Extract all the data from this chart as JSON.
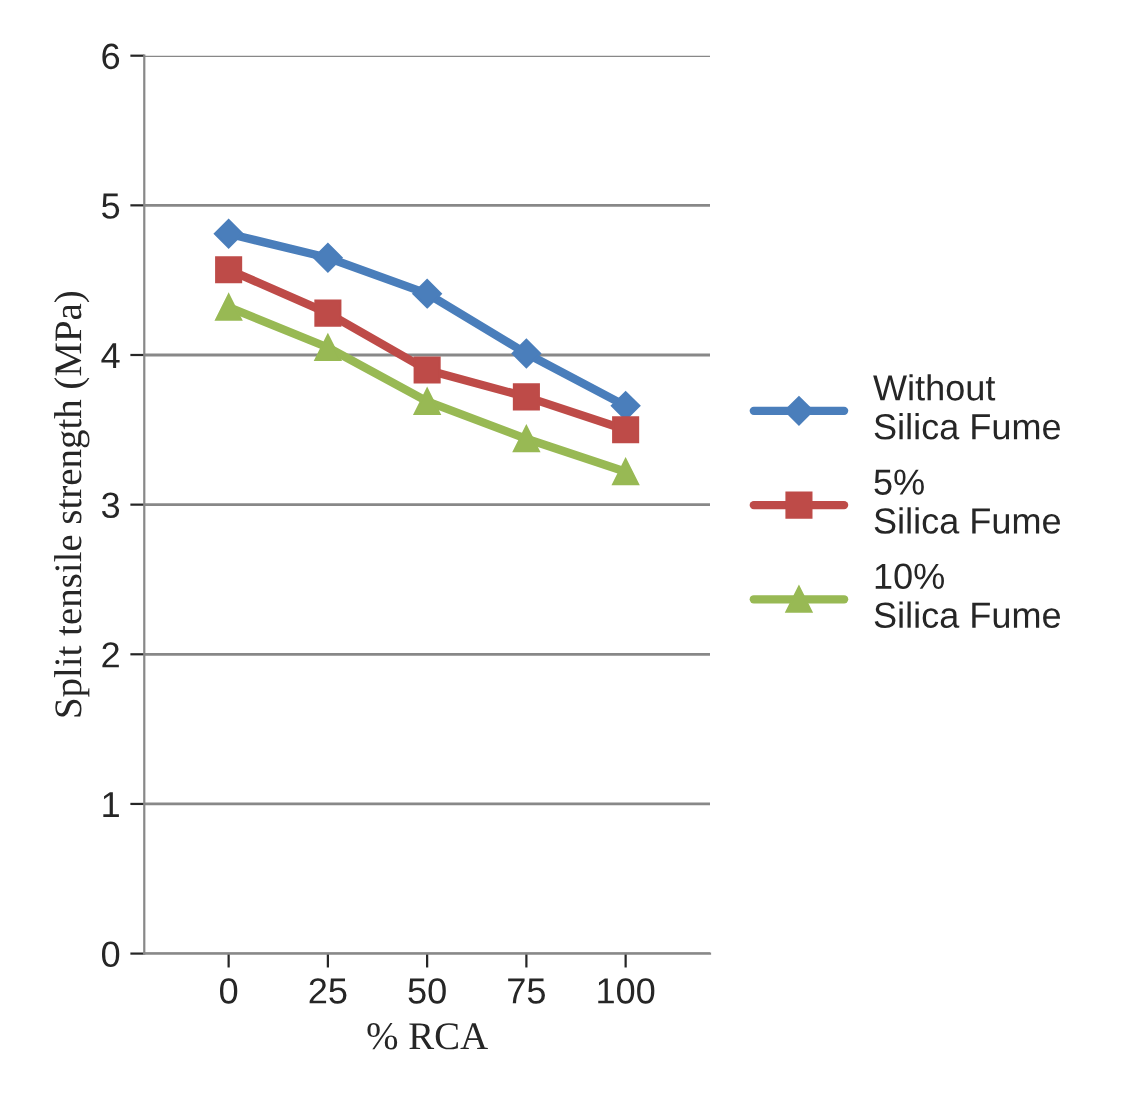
{
  "chart_data": {
    "type": "line",
    "xlabel": "% RCA",
    "ylabel": "Split tensile strength (MPa)",
    "categories": [
      "0",
      "25",
      "50",
      "75",
      "100"
    ],
    "ylim": [
      0,
      6
    ],
    "yticks": [
      0,
      1,
      2,
      3,
      4,
      5,
      6
    ],
    "grid": "y",
    "legend": "right",
    "series": [
      {
        "name": "Without Silica Fume",
        "color": "#4a7ebb",
        "marker": "diamond",
        "values": [
          4.81,
          4.65,
          4.41,
          4.01,
          3.66
        ]
      },
      {
        "name": "5% Silica Fume",
        "color": "#be4b48",
        "marker": "square",
        "values": [
          4.57,
          4.28,
          3.9,
          3.72,
          3.5
        ]
      },
      {
        "name": "10% Silica Fume",
        "color": "#98b954",
        "marker": "triangle",
        "values": [
          4.32,
          4.05,
          3.69,
          3.44,
          3.22
        ]
      }
    ]
  }
}
